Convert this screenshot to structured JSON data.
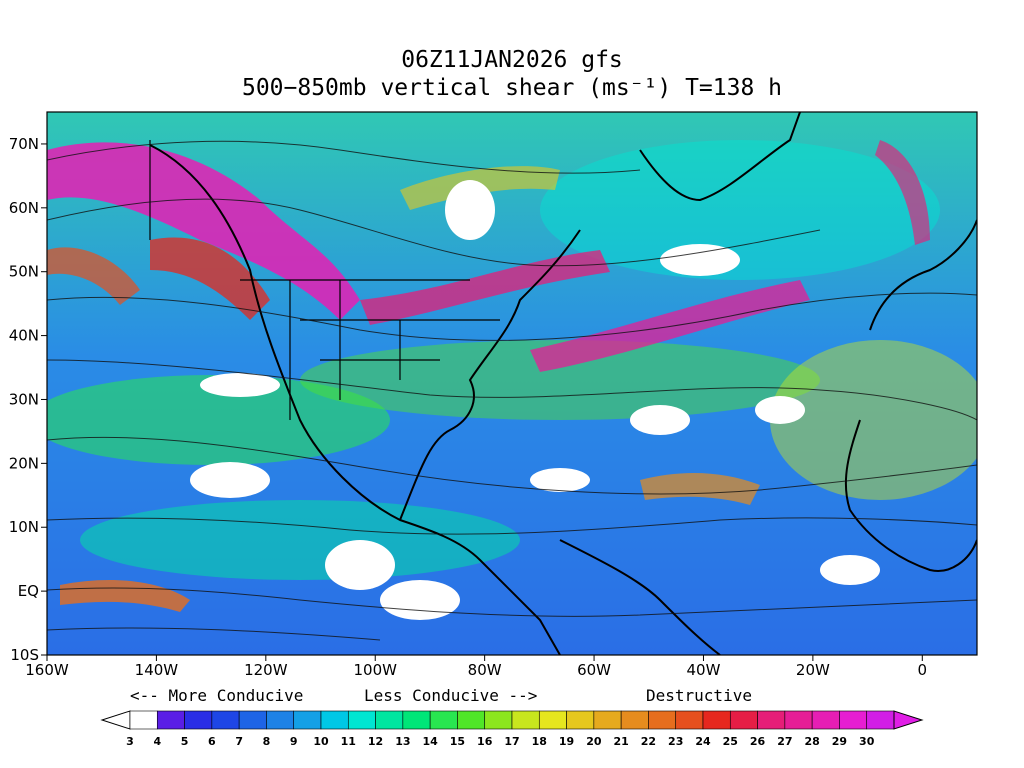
{
  "title": {
    "line1": "06Z11JAN2026 gfs",
    "line2": "500−850mb vertical shear (ms⁻¹) T=138 h"
  },
  "map": {
    "lon_range": [
      -160,
      10
    ],
    "lat_range": [
      -10,
      75
    ],
    "x_ticks": [
      {
        "lon": -160,
        "label": "160W"
      },
      {
        "lon": -140,
        "label": "140W"
      },
      {
        "lon": -120,
        "label": "120W"
      },
      {
        "lon": -100,
        "label": "100W"
      },
      {
        "lon": -80,
        "label": "80W"
      },
      {
        "lon": -60,
        "label": "60W"
      },
      {
        "lon": -40,
        "label": "40W"
      },
      {
        "lon": -20,
        "label": "20W"
      },
      {
        "lon": 0,
        "label": "0"
      }
    ],
    "y_ticks": [
      {
        "lat": 70,
        "label": "70N"
      },
      {
        "lat": 60,
        "label": "60N"
      },
      {
        "lat": 50,
        "label": "50N"
      },
      {
        "lat": 40,
        "label": "40N"
      },
      {
        "lat": 30,
        "label": "30N"
      },
      {
        "lat": 20,
        "label": "20N"
      },
      {
        "lat": 10,
        "label": "10N"
      },
      {
        "lat": 0,
        "label": "EQ"
      },
      {
        "lat": -10,
        "label": "10S"
      }
    ]
  },
  "colorbar": {
    "labels": [
      "3",
      "4",
      "5",
      "6",
      "7",
      "8",
      "9",
      "10",
      "11",
      "12",
      "13",
      "14",
      "15",
      "16",
      "17",
      "18",
      "19",
      "20",
      "21",
      "22",
      "23",
      "24",
      "25",
      "26",
      "27",
      "28",
      "29",
      "30"
    ],
    "colors": [
      "#ffffff",
      "#5a1ee6",
      "#2a2ee6",
      "#1e46e6",
      "#1e64e6",
      "#1e82e6",
      "#14a0e6",
      "#00c8e6",
      "#00e6d2",
      "#00e6a0",
      "#00e678",
      "#28e650",
      "#50e628",
      "#8ce61e",
      "#c8e61e",
      "#e6e61e",
      "#e6c81e",
      "#e6aa1e",
      "#e68c1e",
      "#e66e1e",
      "#e6501e",
      "#e6281e",
      "#e61e46",
      "#e61e78",
      "#e61e96",
      "#e61eb4",
      "#e61ed2",
      "#d21ee6"
    ],
    "notes": {
      "more_conducive": "<-- More Conducive",
      "less_conducive": "Less Conducive -->",
      "destructive": "Destructive"
    }
  }
}
